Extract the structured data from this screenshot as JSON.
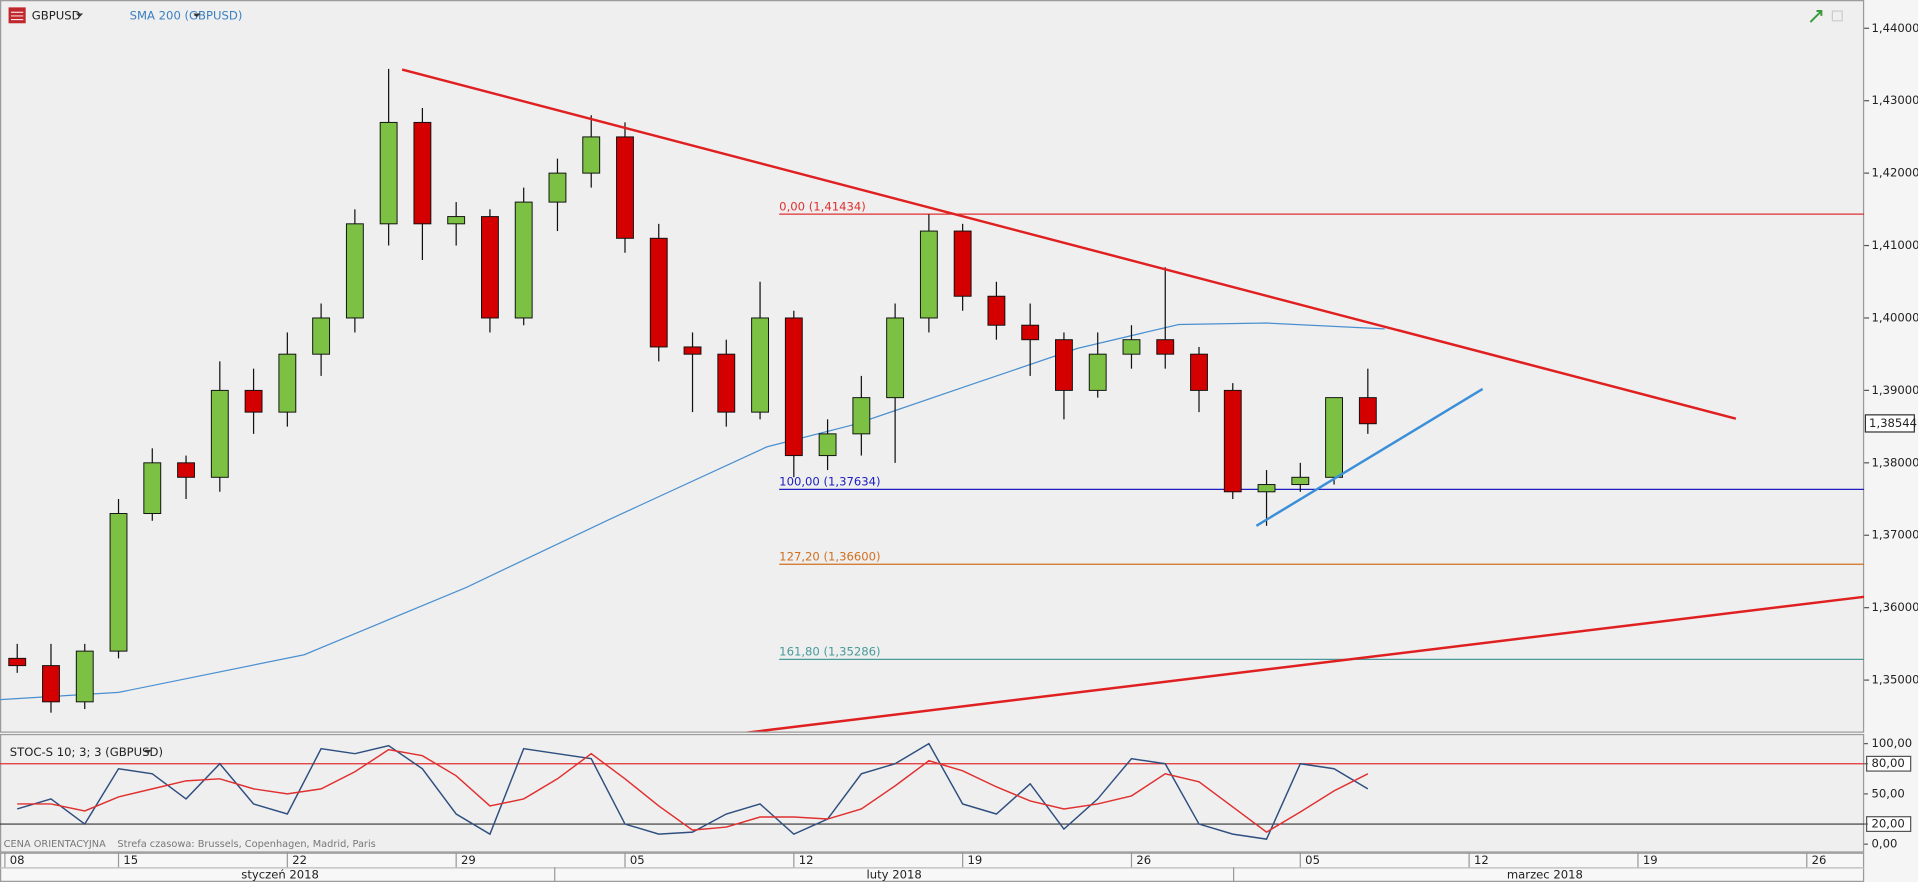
{
  "chart_data": [
    {
      "type": "candlestick",
      "title": "GBPUSD",
      "x": [
        2,
        3,
        4,
        5,
        6,
        7,
        8,
        9,
        10,
        11,
        12,
        13,
        14,
        15,
        16,
        17,
        18,
        19,
        20,
        21,
        22,
        23,
        24,
        25,
        26,
        27,
        28,
        29,
        30,
        31,
        32,
        33,
        34,
        35,
        36,
        37,
        38,
        39,
        40,
        41,
        42
      ],
      "open": [
        1.353,
        1.352,
        1.347,
        1.354,
        1.373,
        1.38,
        1.378,
        1.39,
        1.387,
        1.395,
        1.4,
        1.413,
        1.427,
        1.413,
        1.414,
        1.4,
        1.416,
        1.42,
        1.425,
        1.411,
        1.396,
        1.395,
        1.387,
        1.4,
        1.381,
        1.384,
        1.389,
        1.4,
        1.412,
        1.403,
        1.399,
        1.397,
        1.39,
        1.395,
        1.397,
        1.395,
        1.39,
        1.376,
        1.377,
        1.378,
        1.389
      ],
      "high": [
        1.355,
        1.355,
        1.355,
        1.375,
        1.382,
        1.381,
        1.394,
        1.393,
        1.398,
        1.402,
        1.415,
        1.4344,
        1.429,
        1.416,
        1.415,
        1.418,
        1.422,
        1.428,
        1.427,
        1.413,
        1.398,
        1.397,
        1.405,
        1.401,
        1.386,
        1.392,
        1.402,
        1.4143,
        1.413,
        1.405,
        1.402,
        1.398,
        1.398,
        1.399,
        1.407,
        1.396,
        1.391,
        1.379,
        1.38,
        1.389,
        1.393
      ],
      "low": [
        1.351,
        1.3455,
        1.346,
        1.353,
        1.372,
        1.375,
        1.376,
        1.384,
        1.385,
        1.392,
        1.398,
        1.41,
        1.408,
        1.41,
        1.398,
        1.399,
        1.412,
        1.418,
        1.409,
        1.394,
        1.387,
        1.385,
        1.386,
        1.378,
        1.379,
        1.381,
        1.38,
        1.398,
        1.401,
        1.397,
        1.392,
        1.386,
        1.389,
        1.393,
        1.393,
        1.387,
        1.375,
        1.3713,
        1.376,
        1.377,
        1.384
      ],
      "close": [
        1.352,
        1.347,
        1.354,
        1.373,
        1.38,
        1.378,
        1.39,
        1.387,
        1.395,
        1.4,
        1.413,
        1.427,
        1.413,
        1.414,
        1.4,
        1.416,
        1.42,
        1.425,
        1.411,
        1.396,
        1.395,
        1.387,
        1.4,
        1.381,
        1.384,
        1.389,
        1.4,
        1.412,
        1.403,
        1.399,
        1.397,
        1.39,
        1.395,
        1.397,
        1.395,
        1.39,
        1.376,
        1.377,
        1.378,
        1.389,
        1.3854
      ],
      "up_color": "#7cc143",
      "down_color": "#d40000",
      "overlays": [
        {
          "name": "SMA 200 (GBPUSD)",
          "color": "#4a90d0",
          "x": [
            1.5,
            5,
            10.5,
            15.3,
            19.5,
            24.2,
            26.8,
            30.5,
            33.4,
            36.4,
            39,
            42.5
          ],
          "values": [
            1.3473,
            1.3483,
            1.3535,
            1.3628,
            1.3721,
            1.3822,
            1.3853,
            1.3912,
            1.3958,
            1.3991,
            1.3993,
            1.3985
          ]
        }
      ],
      "trendlines": [
        {
          "color": "#e02020",
          "x": [
            13.4,
            52.9
          ],
          "y": [
            1.4343,
            1.3861
          ]
        },
        {
          "color": "#e02020",
          "x": [
            23.0,
            56.7
          ],
          "y": [
            1.3424,
            1.3615
          ]
        },
        {
          "color": "#3a8fd8",
          "x": [
            38.7,
            45.4
          ],
          "y": [
            1.3713,
            1.3902
          ]
        }
      ],
      "fib_levels": [
        {
          "label": "0,00 (1,41434)",
          "value": 1.41434,
          "color": "#e03030"
        },
        {
          "label": "100,00 (1,37634)",
          "value": 1.37634,
          "color": "#2020c0"
        },
        {
          "label": "127,20 (1,36600)",
          "value": 1.366,
          "color": "#d07020"
        },
        {
          "label": "161,80 (1,35286)",
          "value": 1.35286,
          "color": "#4a9a9a"
        }
      ],
      "last_price": {
        "value": 1.38544,
        "label": "1,38544"
      },
      "xlim": [
        1.49,
        56.7
      ],
      "xticks": [
        {
          "value": 0,
          "label": "08"
        },
        {
          "value": 5,
          "label": "15"
        },
        {
          "value": 10,
          "label": "22"
        },
        {
          "value": 15,
          "label": "29"
        },
        {
          "value": 20,
          "label": "05"
        },
        {
          "value": 25,
          "label": "12"
        },
        {
          "value": 30,
          "label": "19"
        },
        {
          "value": 35,
          "label": "26"
        },
        {
          "value": 40,
          "label": "05"
        },
        {
          "value": 45,
          "label": "12"
        },
        {
          "value": 50,
          "label": "19"
        },
        {
          "value": 55,
          "label": "26"
        }
      ],
      "month_labels": [
        "styczeń 2018",
        "luty 2018",
        "marzec 2018"
      ],
      "ylim": [
        1.3429,
        1.4439
      ],
      "yticks": [
        {
          "value": 1.35,
          "label": "1,35000"
        },
        {
          "value": 1.36,
          "label": "1,36000"
        },
        {
          "value": 1.37,
          "label": "1,37000"
        },
        {
          "value": 1.38,
          "label": "1,38000"
        },
        {
          "value": 1.39,
          "label": "1,39000"
        },
        {
          "value": 1.4,
          "label": "1,40000"
        },
        {
          "value": 1.41,
          "label": "1,41000"
        },
        {
          "value": 1.42,
          "label": "1,42000"
        },
        {
          "value": 1.43,
          "label": "1,43000"
        },
        {
          "value": 1.44,
          "label": "1,44000"
        }
      ]
    },
    {
      "type": "line",
      "title": "STOC-S 10; 3; 3 (GBPUSD)",
      "x": [
        2,
        3,
        4,
        5,
        6,
        7,
        8,
        9,
        10,
        11,
        12,
        13,
        14,
        15,
        16,
        17,
        18,
        19,
        20,
        21,
        22,
        23,
        24,
        25,
        26,
        27,
        28,
        29,
        30,
        31,
        32,
        33,
        34,
        35,
        36,
        37,
        38,
        39,
        40,
        41,
        42
      ],
      "series": [
        {
          "color": "#2f4f7f",
          "values": [
            35,
            45,
            20,
            75,
            70,
            45,
            80,
            40,
            30,
            95,
            90,
            98,
            75,
            30,
            10,
            95,
            90,
            85,
            20,
            10,
            12,
            30,
            40,
            10,
            25,
            70,
            80,
            100,
            40,
            30,
            60,
            15,
            45,
            85,
            80,
            20,
            10,
            5,
            80,
            75,
            55
          ]
        },
        {
          "color": "#e03030",
          "values": [
            40,
            40,
            33,
            47,
            55,
            63,
            65,
            55,
            50,
            55,
            72,
            94,
            88,
            68,
            38,
            45,
            65,
            90,
            65,
            38,
            14,
            17,
            27,
            27,
            25,
            35,
            58,
            83,
            73,
            57,
            43,
            35,
            40,
            48,
            70,
            62,
            37,
            12,
            32,
            53,
            70
          ]
        }
      ],
      "levels": [
        {
          "value": 80,
          "color": "#e03030"
        },
        {
          "value": 20,
          "color": "#333333"
        }
      ],
      "ylim": [
        -8.4,
        108.4
      ],
      "yticks": [
        {
          "value": 100,
          "label": "100,00"
        },
        {
          "value": 80,
          "label": "80,00"
        },
        {
          "value": 50,
          "label": "50,00"
        },
        {
          "value": 20,
          "label": "20,00"
        },
        {
          "value": 0,
          "label": "0,00"
        }
      ]
    }
  ],
  "footer": {
    "note": "CENA ORIENTACYJNA",
    "timezone": "Strefa czasowa: Brussels, Copenhagen, Madrid, Paris"
  }
}
